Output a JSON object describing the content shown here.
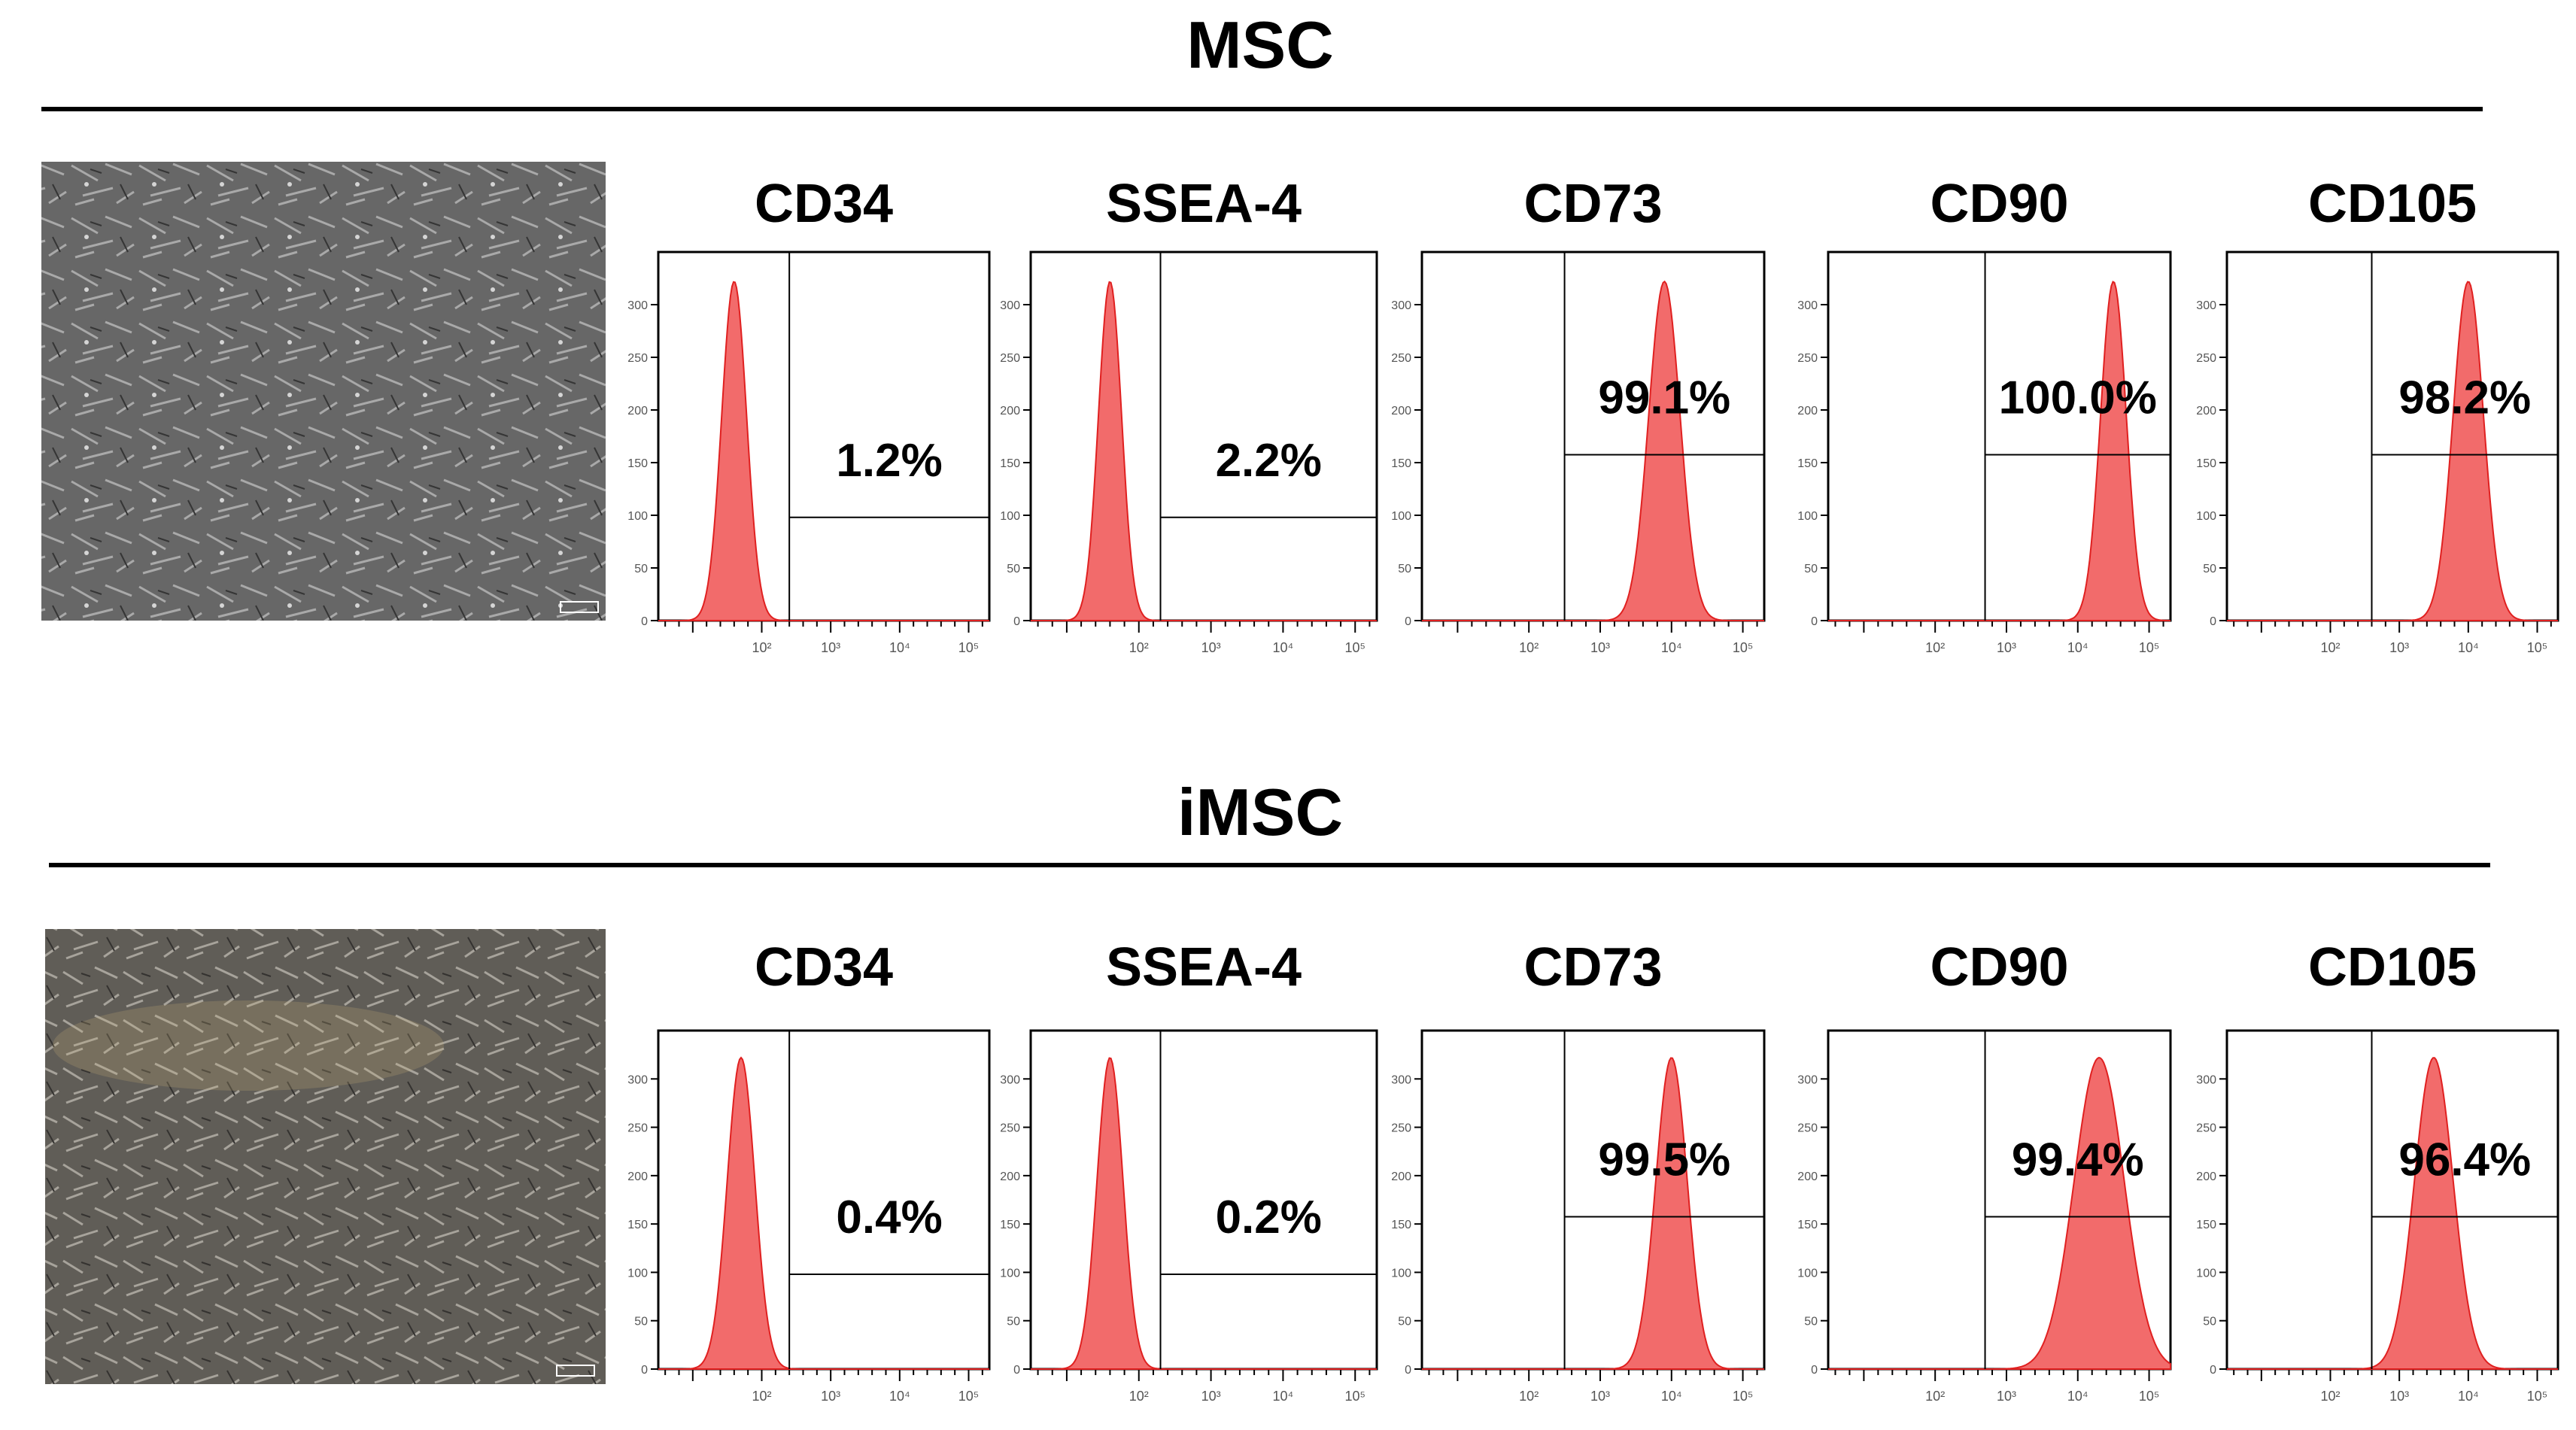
{
  "colors": {
    "histogram_fill": "#f26b6b",
    "histogram_stroke": "#e02020",
    "frame": "#000000",
    "micrograph_bg_msc": "#6f6f6f",
    "micrograph_bg_imsc": "#625f58"
  },
  "panels": [
    {
      "title": "MSC",
      "markers": [
        "CD34",
        "SSEA-4",
        "CD73",
        "CD90",
        "CD105"
      ]
    },
    {
      "title": "iMSC",
      "markers": [
        "CD34",
        "SSEA-4",
        "CD73",
        "CD90",
        "CD105"
      ]
    }
  ],
  "chart_data": [
    {
      "type": "area",
      "panel": "MSC",
      "title": "CD34",
      "gate_percent": 1.2,
      "label": "1.2%",
      "peak_log": 1.6,
      "peak_width": 0.18,
      "gate_start_log": 2.4,
      "xlim_log": [
        0.5,
        5.3
      ],
      "ylim": [
        0,
        350
      ],
      "yticks": [
        0,
        50,
        100,
        150,
        200,
        250,
        300
      ],
      "xticks_log": [
        2,
        3,
        4,
        5
      ]
    },
    {
      "type": "area",
      "panel": "MSC",
      "title": "SSEA-4",
      "gate_percent": 2.2,
      "label": "2.2%",
      "peak_log": 1.6,
      "peak_width": 0.16,
      "gate_start_log": 2.3,
      "xlim_log": [
        0.5,
        5.3
      ],
      "ylim": [
        0,
        350
      ],
      "yticks": [
        0,
        50,
        100,
        150,
        200,
        250,
        300
      ],
      "xticks_log": [
        2,
        3,
        4,
        5
      ]
    },
    {
      "type": "area",
      "panel": "MSC",
      "title": "CD73",
      "gate_percent": 99.1,
      "label": "99.1%",
      "peak_log": 3.9,
      "peak_width": 0.22,
      "gate_start_log": 2.5,
      "xlim_log": [
        0.5,
        5.3
      ],
      "ylim": [
        0,
        350
      ],
      "yticks": [
        0,
        50,
        100,
        150,
        200,
        250,
        300
      ],
      "xticks_log": [
        2,
        3,
        4,
        5
      ]
    },
    {
      "type": "area",
      "panel": "MSC",
      "title": "CD90",
      "gate_percent": 100.0,
      "label": "100.0%",
      "peak_log": 4.5,
      "peak_width": 0.18,
      "gate_start_log": 2.7,
      "xlim_log": [
        0.5,
        5.3
      ],
      "ylim": [
        0,
        350
      ],
      "yticks": [
        0,
        50,
        100,
        150,
        200,
        250,
        300
      ],
      "xticks_log": [
        2,
        3,
        4,
        5
      ]
    },
    {
      "type": "area",
      "panel": "MSC",
      "title": "CD105",
      "gate_percent": 98.2,
      "label": "98.2%",
      "peak_log": 4.0,
      "peak_width": 0.22,
      "gate_start_log": 2.6,
      "xlim_log": [
        0.5,
        5.3
      ],
      "ylim": [
        0,
        350
      ],
      "yticks": [
        0,
        50,
        100,
        150,
        200,
        250,
        300
      ],
      "xticks_log": [
        2,
        3,
        4,
        5
      ]
    },
    {
      "type": "area",
      "panel": "iMSC",
      "title": "CD34",
      "gate_percent": 0.4,
      "label": "0.4%",
      "peak_log": 1.7,
      "peak_width": 0.2,
      "gate_start_log": 2.4,
      "xlim_log": [
        0.5,
        5.3
      ],
      "ylim": [
        0,
        350
      ],
      "yticks": [
        0,
        50,
        100,
        150,
        200,
        250,
        300
      ],
      "xticks_log": [
        2,
        3,
        4,
        5
      ]
    },
    {
      "type": "area",
      "panel": "iMSC",
      "title": "SSEA-4",
      "gate_percent": 0.2,
      "label": "0.2%",
      "peak_log": 1.6,
      "peak_width": 0.18,
      "gate_start_log": 2.3,
      "xlim_log": [
        0.5,
        5.3
      ],
      "ylim": [
        0,
        350
      ],
      "yticks": [
        0,
        50,
        100,
        150,
        200,
        250,
        300
      ],
      "xticks_log": [
        2,
        3,
        4,
        5
      ]
    },
    {
      "type": "area",
      "panel": "iMSC",
      "title": "CD73",
      "gate_percent": 99.5,
      "label": "99.5%",
      "peak_log": 4.0,
      "peak_width": 0.22,
      "gate_start_log": 2.5,
      "xlim_log": [
        0.5,
        5.3
      ],
      "ylim": [
        0,
        350
      ],
      "yticks": [
        0,
        50,
        100,
        150,
        200,
        250,
        300
      ],
      "xticks_log": [
        2,
        3,
        4,
        5
      ]
    },
    {
      "type": "area",
      "panel": "iMSC",
      "title": "CD90",
      "gate_percent": 99.4,
      "label": "99.4%",
      "peak_log": 4.3,
      "peak_width": 0.35,
      "gate_start_log": 2.7,
      "xlim_log": [
        0.5,
        5.3
      ],
      "ylim": [
        0,
        350
      ],
      "yticks": [
        0,
        50,
        100,
        150,
        200,
        250,
        300
      ],
      "xticks_log": [
        2,
        3,
        4,
        5
      ]
    },
    {
      "type": "area",
      "panel": "iMSC",
      "title": "CD105",
      "gate_percent": 96.4,
      "label": "96.4%",
      "peak_log": 3.5,
      "peak_width": 0.28,
      "gate_start_log": 2.6,
      "xlim_log": [
        0.5,
        5.3
      ],
      "ylim": [
        0,
        350
      ],
      "yticks": [
        0,
        50,
        100,
        150,
        200,
        250,
        300
      ],
      "xticks_log": [
        2,
        3,
        4,
        5
      ]
    }
  ]
}
